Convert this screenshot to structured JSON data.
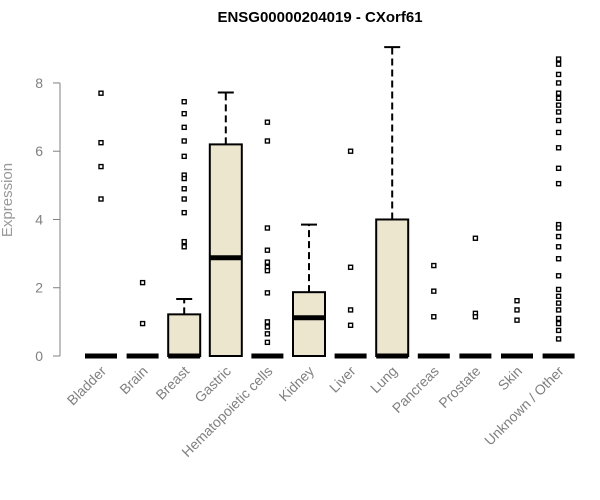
{
  "chart_data": {
    "type": "box",
    "title": "ENSG00000204019 - CXorf61",
    "xlabel": "",
    "ylabel": "Expression",
    "ylim": [
      0,
      9.2
    ],
    "yticks": [
      0,
      2,
      4,
      6,
      8
    ],
    "box_fill": "#ede6cf",
    "stroke": "#000000",
    "categories": [
      "Bladder",
      "Brain",
      "Breast",
      "Gastric",
      "Hematopoietic cells",
      "Kidney",
      "Liver",
      "Lung",
      "Pancreas",
      "Prostate",
      "Skin",
      "Unknown / Other"
    ],
    "boxes": [
      {
        "q1": 0,
        "median": 0,
        "q3": 0,
        "whisker_low": 0,
        "whisker_high": 0,
        "outliers": [
          7.7,
          6.25,
          5.55,
          4.6
        ]
      },
      {
        "q1": 0,
        "median": 0,
        "q3": 0,
        "whisker_low": 0,
        "whisker_high": 0,
        "outliers": [
          2.15,
          0.95
        ]
      },
      {
        "q1": 0,
        "median": 0,
        "q3": 1.22,
        "whisker_low": 0,
        "whisker_high": 1.67,
        "outliers": [
          7.45,
          7.1,
          6.7,
          6.3,
          5.85,
          5.3,
          5.2,
          4.9,
          4.6,
          4.2,
          3.35,
          3.2
        ]
      },
      {
        "q1": 0,
        "median": 2.88,
        "q3": 6.2,
        "whisker_low": 0,
        "whisker_high": 7.72,
        "outliers": []
      },
      {
        "q1": 0,
        "median": 0,
        "q3": 0,
        "whisker_low": 0,
        "whisker_high": 0,
        "outliers": [
          6.85,
          6.3,
          3.75,
          3.1,
          2.75,
          2.6,
          2.5,
          1.85,
          1.0,
          0.85,
          0.65,
          0.4
        ]
      },
      {
        "q1": 0,
        "median": 1.12,
        "q3": 1.87,
        "whisker_low": 0,
        "whisker_high": 3.85,
        "outliers": []
      },
      {
        "q1": 0,
        "median": 0,
        "q3": 0,
        "whisker_low": 0,
        "whisker_high": 0,
        "outliers": [
          6.0,
          2.6,
          1.35,
          0.9
        ]
      },
      {
        "q1": 0,
        "median": 0,
        "q3": 4.0,
        "whisker_low": 0,
        "whisker_high": 9.05,
        "outliers": []
      },
      {
        "q1": 0,
        "median": 0,
        "q3": 0,
        "whisker_low": 0,
        "whisker_high": 0,
        "outliers": [
          2.65,
          1.9,
          1.15
        ]
      },
      {
        "q1": 0,
        "median": 0,
        "q3": 0,
        "whisker_low": 0,
        "whisker_high": 0,
        "outliers": [
          3.45,
          1.25,
          1.15
        ]
      },
      {
        "q1": 0,
        "median": 0,
        "q3": 0,
        "whisker_low": 0,
        "whisker_high": 0,
        "outliers": [
          1.62,
          1.35,
          1.05
        ]
      },
      {
        "q1": 0,
        "median": 0,
        "q3": 0,
        "whisker_low": 0,
        "whisker_high": 0,
        "outliers": [
          8.7,
          8.55,
          8.25,
          8.0,
          7.7,
          7.55,
          7.35,
          7.15,
          6.9,
          6.55,
          6.1,
          5.5,
          5.05,
          3.85,
          3.75,
          3.5,
          3.2,
          2.85,
          2.35,
          1.95,
          1.75,
          1.55,
          1.35,
          1.1,
          0.95,
          0.75,
          0.5
        ]
      }
    ]
  }
}
